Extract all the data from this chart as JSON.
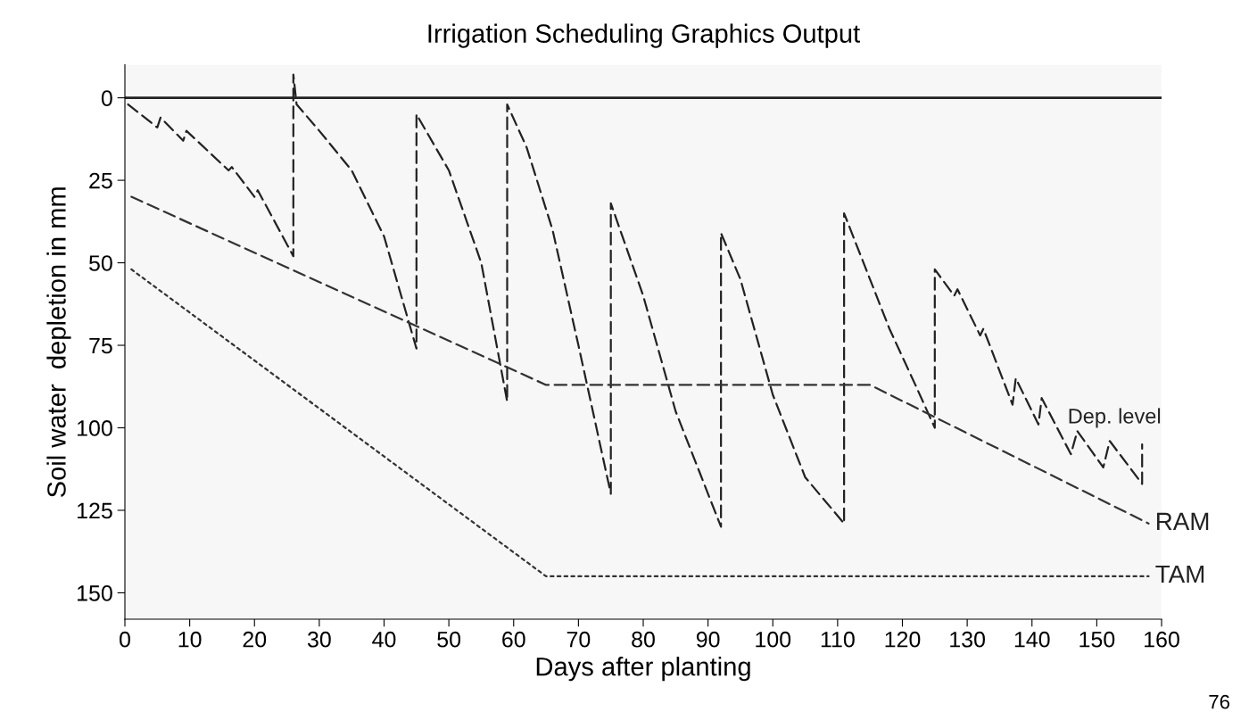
{
  "chart_data": {
    "type": "line",
    "title": "Irrigation Scheduling Graphics Output",
    "xlabel": "Days after planting",
    "ylabel": "Soil water  depletion in mm",
    "xlim": [
      0,
      160
    ],
    "xticks": [
      0,
      10,
      20,
      30,
      40,
      50,
      60,
      70,
      80,
      90,
      100,
      110,
      120,
      130,
      140,
      150,
      160
    ],
    "ylim": [
      158,
      -10
    ],
    "yticks": [
      0,
      25,
      50,
      75,
      100,
      125,
      150
    ],
    "grid": false,
    "legend": false,
    "marker": "none",
    "ref_lines": [
      {
        "axis": "y",
        "value": 0,
        "color": "#222222",
        "line_style": "solid"
      }
    ],
    "annotations": [
      "76"
    ],
    "series": [
      {
        "name": "Dep. level",
        "color": "#222222",
        "line_style": "dashed",
        "x": [
          0.5,
          5,
          5.5,
          9,
          9.5,
          16,
          16.5,
          20,
          20.5,
          26,
          26,
          26.5,
          30,
          35,
          40,
          45,
          45,
          50,
          55,
          59,
          59,
          62,
          66,
          70,
          75,
          75,
          80,
          85,
          92,
          92,
          95,
          100,
          105,
          111,
          111,
          115,
          118,
          122,
          125,
          125,
          128,
          128.5,
          132,
          132.5,
          137,
          137.5,
          141,
          141.5,
          146,
          147,
          151,
          152,
          157,
          157
        ],
        "values": [
          2,
          9,
          6,
          13,
          10,
          22,
          21,
          30,
          28,
          48,
          -7,
          2,
          10,
          22,
          42,
          76,
          5,
          22,
          50,
          92,
          2,
          15,
          40,
          75,
          120,
          32,
          60,
          95,
          130,
          41,
          55,
          90,
          115,
          129,
          35,
          55,
          70,
          87,
          100,
          52,
          60,
          58,
          72,
          70,
          93,
          85,
          99,
          91,
          108,
          101,
          112,
          104,
          117,
          105
        ]
      },
      {
        "name": "RAM",
        "color": "#333333",
        "line_style": "dashed",
        "x": [
          1,
          65,
          115,
          158
        ],
        "values": [
          30,
          87,
          87,
          129
        ]
      },
      {
        "name": "TAM",
        "color": "#333333",
        "line_style": "dotted",
        "x": [
          1,
          65,
          158
        ],
        "values": [
          52,
          145,
          145
        ]
      }
    ]
  }
}
